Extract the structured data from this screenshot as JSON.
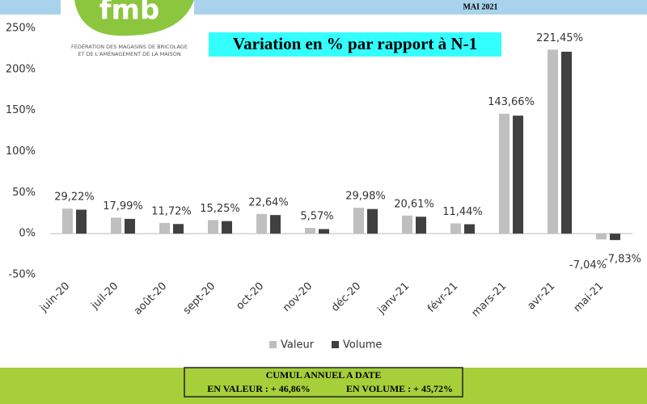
{
  "header": {
    "logo": "fmb",
    "org_line1": "FÉDÉRATION DES MAGASINS DE BRICOLAGE",
    "org_line2": "ET DE L'AMÉNAGEMENT DE LA MAISON",
    "date": "MAI 2021"
  },
  "chart_data": {
    "type": "bar",
    "title": "Variation en % par rapport à N-1",
    "categories": [
      "juin-20",
      "juil-20",
      "août-20",
      "sept-20",
      "oct-20",
      "nov-20",
      "déc-20",
      "janv-21",
      "févr-21",
      "mars-21",
      "avr-21",
      "mai-21"
    ],
    "series": [
      {
        "name": "Valeur",
        "color": "#bfbfbf",
        "values": [
          30.5,
          19.5,
          13,
          16.5,
          24,
          7,
          31.5,
          22,
          12.5,
          146,
          224,
          -7.04
        ],
        "value_labels": [
          null,
          null,
          null,
          null,
          null,
          null,
          null,
          null,
          null,
          null,
          null,
          "-7,04%"
        ]
      },
      {
        "name": "Volume",
        "color": "#404040",
        "values": [
          29.22,
          17.99,
          11.72,
          15.25,
          22.64,
          5.57,
          29.98,
          20.61,
          11.44,
          143.66,
          221.45,
          -7.83
        ],
        "value_labels": [
          "29,22%",
          "17,99%",
          "11,72%",
          "15,25%",
          "22,64%",
          "5,57%",
          "29,98%",
          "20,61%",
          "11,44%",
          "143,66%",
          "221,45%",
          "-7,83%"
        ]
      }
    ],
    "ylim": [
      -50,
      250
    ],
    "yticks": [
      {
        "value": -50,
        "label": "-50%"
      },
      {
        "value": 0,
        "label": "0%"
      },
      {
        "value": 50,
        "label": "50%"
      },
      {
        "value": 100,
        "label": "100%"
      },
      {
        "value": 150,
        "label": "150%"
      },
      {
        "value": 200,
        "label": "200%"
      },
      {
        "value": 250,
        "label": "250%"
      }
    ],
    "legend": "bottom"
  },
  "footer": {
    "title": "CUMUL ANNUEL A DATE",
    "valeur": "EN VALEUR : + 46,86%",
    "volume": "EN VOLUME : + 45,72%"
  }
}
